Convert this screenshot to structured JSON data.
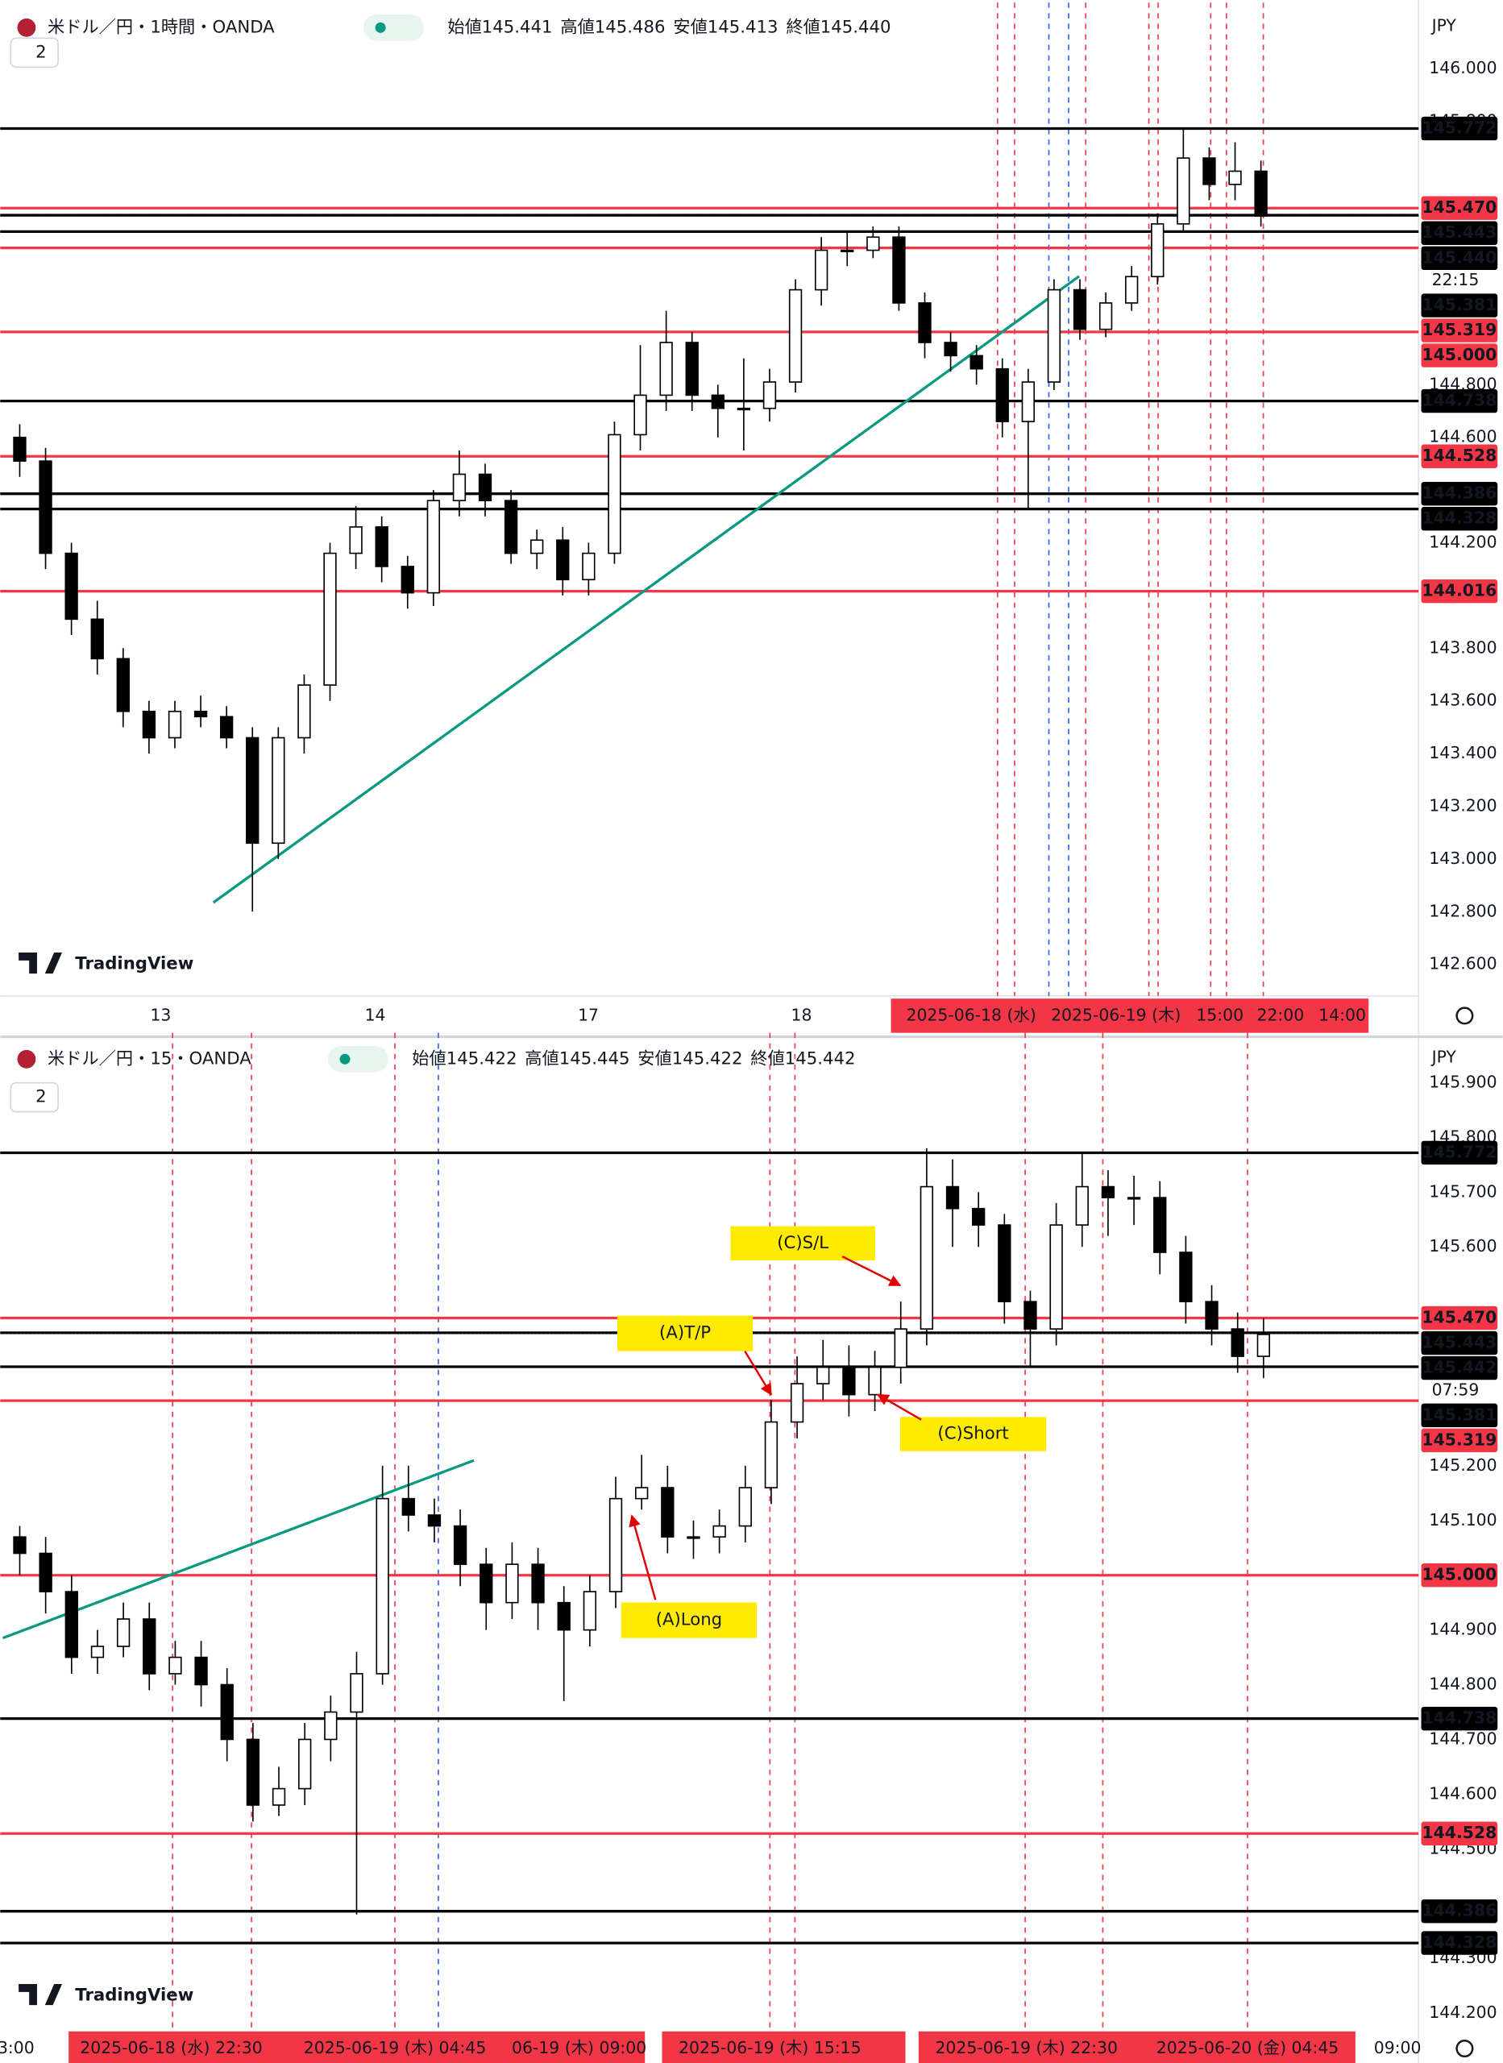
{
  "ui": {
    "currency": "JPY",
    "interval_badge": "2",
    "brand": "TradingView"
  },
  "chart_data": [
    {
      "type": "candlestick",
      "title": "米ドル／円・1時間・OANDA",
      "ohlc": [
        {
          "label": "始値",
          "value": "145.441"
        },
        {
          "label": "高値",
          "value": "145.486"
        },
        {
          "label": "安値",
          "value": "145.413"
        },
        {
          "label": "終値",
          "value": "145.440"
        }
      ],
      "open": [
        144.6,
        144.51,
        144.16,
        143.91,
        143.76,
        143.56,
        143.46,
        143.56,
        143.54,
        143.46,
        143.06,
        143.46,
        143.66,
        144.16,
        144.26,
        144.11,
        144.01,
        144.36,
        144.46,
        144.36,
        144.16,
        144.21,
        144.06,
        144.16,
        144.61,
        144.76,
        144.96,
        144.76,
        144.71,
        144.71,
        144.81,
        145.16,
        145.31,
        145.31,
        145.36,
        145.11,
        144.96,
        144.91,
        144.86,
        144.66,
        144.81,
        145.16,
        145.01,
        145.11,
        145.21,
        145.41,
        145.66,
        145.56,
        145.61
      ],
      "high": [
        144.65,
        144.56,
        144.2,
        143.98,
        143.8,
        143.6,
        143.6,
        143.62,
        143.58,
        143.5,
        143.5,
        143.7,
        144.2,
        144.34,
        144.3,
        144.15,
        144.4,
        144.55,
        144.5,
        144.4,
        144.25,
        144.26,
        144.2,
        144.66,
        144.95,
        145.08,
        145.0,
        144.8,
        144.9,
        144.86,
        145.2,
        145.36,
        145.38,
        145.4,
        145.4,
        145.15,
        145.0,
        144.95,
        144.9,
        144.86,
        145.2,
        145.2,
        145.15,
        145.25,
        145.45,
        145.77,
        145.7,
        145.72,
        145.65
      ],
      "low": [
        144.45,
        144.1,
        143.85,
        143.7,
        143.5,
        143.4,
        143.42,
        143.5,
        143.42,
        142.8,
        143.0,
        143.4,
        143.6,
        144.1,
        144.05,
        143.95,
        143.96,
        144.3,
        144.3,
        144.12,
        144.1,
        144.0,
        144.0,
        144.12,
        144.55,
        144.7,
        144.7,
        144.6,
        144.55,
        144.66,
        144.77,
        145.1,
        145.25,
        145.28,
        145.08,
        144.9,
        144.85,
        144.8,
        144.6,
        144.33,
        144.78,
        144.97,
        144.98,
        145.08,
        145.18,
        145.38,
        145.5,
        145.5,
        145.4
      ],
      "close": [
        144.51,
        144.16,
        143.91,
        143.76,
        143.56,
        143.46,
        143.56,
        143.54,
        143.46,
        143.06,
        143.46,
        143.66,
        144.16,
        144.26,
        144.11,
        144.01,
        144.36,
        144.46,
        144.36,
        144.16,
        144.21,
        144.06,
        144.16,
        144.61,
        144.76,
        144.96,
        144.76,
        144.71,
        144.71,
        144.81,
        145.16,
        145.31,
        145.31,
        145.36,
        145.11,
        144.96,
        144.91,
        144.86,
        144.66,
        144.81,
        145.16,
        145.01,
        145.11,
        145.21,
        145.41,
        145.66,
        145.56,
        145.61,
        145.44
      ],
      "ylim": [
        142.48,
        146.075
      ],
      "yticks": [
        {
          "value": 146,
          "label": "146.000"
        },
        {
          "value": 145.8,
          "label": "145.800"
        },
        {
          "value": 144.8,
          "label": "144.800"
        },
        {
          "value": 144.6,
          "label": "144.600"
        },
        {
          "value": 144.2,
          "label": "144.200"
        },
        {
          "value": 143.8,
          "label": "143.800"
        },
        {
          "value": 143.6,
          "label": "143.600"
        },
        {
          "value": 143.4,
          "label": "143.400"
        },
        {
          "value": 143.2,
          "label": "143.200"
        },
        {
          "value": 143,
          "label": "143.000"
        },
        {
          "value": 142.8,
          "label": "142.800"
        },
        {
          "value": 142.6,
          "label": "142.600"
        }
      ],
      "levels": [
        {
          "price": 145.772,
          "color": "#000000"
        },
        {
          "price": {
            "value": 145.47,
            "label": "145.470"
          },
          "color": "#f23645"
        },
        {
          "price": 145.443,
          "color": "#000000"
        },
        {
          "price": 145.381,
          "color": "#000000"
        },
        {
          "price": 145.319,
          "color": "#f23645"
        },
        {
          "price": {
            "value": 145,
            "label": "145.000"
          },
          "color": "#f23645"
        },
        {
          "price": 144.738,
          "color": "#000000"
        },
        {
          "price": 144.528,
          "color": "#f23645"
        },
        {
          "price": 144.386,
          "color": "#000000"
        },
        {
          "price": 144.328,
          "color": "#000000"
        },
        {
          "price": 144.016,
          "color": "#f23645"
        }
      ],
      "current": {
        "price": {
          "value": 145.44,
          "label": "145.440"
        },
        "countdown": "22:15"
      },
      "x_labels": [
        "13",
        "14",
        "17",
        "18"
      ],
      "x_highlight_labels": [
        "2025-06-18 (水)",
        "2025-06-19 (木)",
        "15:00",
        "22:00",
        "14:00"
      ]
    },
    {
      "type": "candlestick",
      "title": "米ドル／円・15・OANDA",
      "ohlc": [
        {
          "label": "始値",
          "value": "145.422"
        },
        {
          "label": "高値",
          "value": "145.445"
        },
        {
          "label": "安値",
          "value": "145.422"
        },
        {
          "label": "終値",
          "value": "145.442"
        }
      ],
      "open": [
        145.07,
        145.04,
        144.97,
        144.85,
        144.87,
        144.92,
        144.82,
        144.85,
        144.8,
        144.7,
        144.58,
        144.61,
        144.7,
        144.75,
        144.82,
        145.14,
        145.11,
        145.09,
        145.02,
        144.95,
        145.02,
        144.95,
        144.9,
        144.97,
        145.14,
        145.16,
        145.07,
        145.07,
        145.09,
        145.16,
        145.28,
        145.35,
        145.38,
        145.33,
        145.38,
        145.45,
        145.71,
        145.67,
        145.64,
        145.5,
        145.45,
        145.64,
        145.71,
        145.69,
        145.69,
        145.59,
        145.5,
        145.45,
        145.4
      ],
      "high": [
        145.09,
        145.07,
        145.0,
        144.9,
        144.95,
        144.95,
        144.88,
        144.88,
        144.83,
        144.73,
        144.65,
        144.73,
        144.78,
        144.86,
        145.2,
        145.2,
        145.14,
        145.12,
        145.05,
        145.06,
        145.05,
        144.98,
        145.0,
        145.18,
        145.22,
        145.2,
        145.1,
        145.12,
        145.2,
        145.32,
        145.4,
        145.43,
        145.42,
        145.41,
        145.5,
        145.78,
        145.76,
        145.7,
        145.66,
        145.52,
        145.68,
        145.77,
        145.74,
        145.73,
        145.72,
        145.62,
        145.53,
        145.48,
        145.47
      ],
      "low": [
        145.0,
        144.93,
        144.82,
        144.82,
        144.85,
        144.79,
        144.8,
        144.76,
        144.66,
        144.55,
        144.56,
        144.58,
        144.66,
        144.38,
        144.8,
        145.08,
        145.06,
        144.98,
        144.9,
        144.92,
        144.9,
        144.77,
        144.87,
        144.94,
        145.12,
        145.04,
        145.03,
        145.04,
        145.06,
        145.13,
        145.25,
        145.32,
        145.29,
        145.3,
        145.35,
        145.42,
        145.6,
        145.6,
        145.46,
        145.38,
        145.42,
        145.6,
        145.62,
        145.64,
        145.55,
        145.46,
        145.42,
        145.37,
        145.36
      ],
      "close": [
        145.04,
        144.97,
        144.85,
        144.87,
        144.92,
        144.82,
        144.85,
        144.8,
        144.7,
        144.58,
        144.61,
        144.7,
        144.75,
        144.82,
        145.14,
        145.11,
        145.09,
        145.02,
        144.95,
        145.02,
        144.95,
        144.9,
        144.97,
        145.14,
        145.16,
        145.07,
        145.07,
        145.09,
        145.16,
        145.28,
        145.35,
        145.38,
        145.33,
        145.38,
        145.45,
        145.71,
        145.67,
        145.64,
        145.5,
        145.45,
        145.64,
        145.71,
        145.69,
        145.69,
        145.59,
        145.5,
        145.45,
        145.4,
        145.44
      ],
      "ylim": [
        144.164,
        145.907
      ],
      "yticks": [
        {
          "value": 145.9,
          "label": "145.900"
        },
        {
          "value": 145.8,
          "label": "145.800"
        },
        {
          "value": 145.7,
          "label": "145.700"
        },
        {
          "value": 145.6,
          "label": "145.600"
        },
        {
          "value": 145.2,
          "label": "145.200"
        },
        {
          "value": 145.1,
          "label": "145.100"
        },
        {
          "value": 144.9,
          "label": "144.900"
        },
        {
          "value": 144.8,
          "label": "144.800"
        },
        {
          "value": 144.7,
          "label": "144.700"
        },
        {
          "value": 144.6,
          "label": "144.600"
        },
        {
          "value": 144.5,
          "label": "144.500"
        },
        {
          "value": 144.3,
          "label": "144.300"
        },
        {
          "value": 144.2,
          "label": "144.200"
        }
      ],
      "levels": [
        {
          "price": 145.772,
          "color": "#000000"
        },
        {
          "price": {
            "value": 145.47,
            "label": "145.470"
          },
          "color": "#f23645"
        },
        {
          "price": 145.443,
          "color": "#000000"
        },
        {
          "price": 145.381,
          "color": "#000000"
        },
        {
          "price": 145.319,
          "color": "#f23645"
        },
        {
          "price": {
            "value": 145,
            "label": "145.000"
          },
          "color": "#f23645"
        },
        {
          "price": 144.738,
          "color": "#000000"
        },
        {
          "price": 144.528,
          "color": "#f23645"
        },
        {
          "price": 144.386,
          "color": "#000000"
        },
        {
          "price": 144.328,
          "color": "#000000"
        }
      ],
      "current": {
        "price": 145.442,
        "countdown": "07:59"
      },
      "x_labels": [
        "3:00",
        "09:00"
      ],
      "x_highlight_labels": [
        "2025-06-18 (水)  22:30",
        "2025-06-19 (木)  04:45",
        "06-19 (木)  09:00",
        "2025-06-19 (木)  15:15",
        "2025-06-19 (木)  22:30",
        "2025-06-20 (金)  04:45"
      ],
      "annotations": [
        "(C)S/L",
        "(A)T/P",
        "(C)Short",
        "(A)Long"
      ]
    }
  ]
}
